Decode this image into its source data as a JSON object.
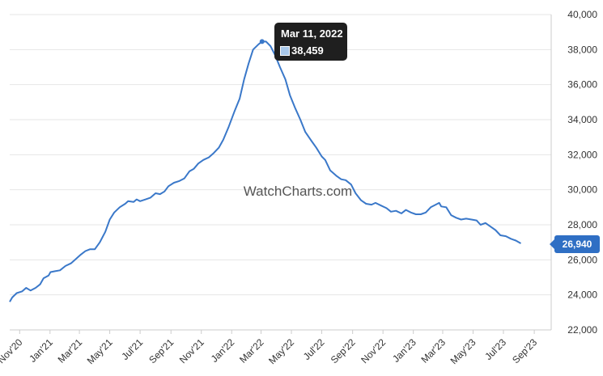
{
  "chart_data": {
    "type": "line",
    "title": "",
    "xlabel": "",
    "ylabel": "",
    "watermark": "WatchCharts.com",
    "ylim": [
      22000,
      40000
    ],
    "yticks": [
      "22,000",
      "24,000",
      "26,000",
      "28,000",
      "30,000",
      "32,000",
      "34,000",
      "36,000",
      "38,000",
      "40,000"
    ],
    "ytick_values": [
      22000,
      24000,
      26000,
      28000,
      30000,
      32000,
      34000,
      36000,
      38000,
      40000
    ],
    "xtick_labels": [
      "Nov'20",
      "Jan'21",
      "Mar'21",
      "May'21",
      "Jul'21",
      "Sep'21",
      "Nov'21",
      "Jan'22",
      "Mar'22",
      "May'22",
      "Jul'22",
      "Sep'22",
      "Nov'22",
      "Jan'23",
      "Mar'23",
      "May'23",
      "Jul'23",
      "Sep'23"
    ],
    "xtick_dates": [
      "2020-11-01",
      "2021-01-01",
      "2021-03-01",
      "2021-05-01",
      "2021-07-01",
      "2021-09-01",
      "2021-11-01",
      "2022-01-01",
      "2022-03-01",
      "2022-05-01",
      "2022-07-01",
      "2022-09-01",
      "2022-11-01",
      "2023-01-01",
      "2023-03-01",
      "2023-05-01",
      "2023-07-01",
      "2023-09-01"
    ],
    "x_range": [
      "2020-10-12",
      "2023-10-05"
    ],
    "grid": true,
    "line_color": "#3a78c9",
    "series": [
      {
        "name": "",
        "points": [
          [
            "2020-10-12",
            23600
          ],
          [
            "2020-10-17",
            23850
          ],
          [
            "2020-10-26",
            24100
          ],
          [
            "2020-11-06",
            24200
          ],
          [
            "2020-11-14",
            24400
          ],
          [
            "2020-11-23",
            24250
          ],
          [
            "2020-12-03",
            24400
          ],
          [
            "2020-12-12",
            24600
          ],
          [
            "2020-12-19",
            24950
          ],
          [
            "2020-12-29",
            25100
          ],
          [
            "2021-01-02",
            25300
          ],
          [
            "2021-01-11",
            25350
          ],
          [
            "2021-01-21",
            25400
          ],
          [
            "2021-02-01",
            25650
          ],
          [
            "2021-02-12",
            25800
          ],
          [
            "2021-02-22",
            26050
          ],
          [
            "2021-03-04",
            26300
          ],
          [
            "2021-03-13",
            26500
          ],
          [
            "2021-03-22",
            26600
          ],
          [
            "2021-04-01",
            26600
          ],
          [
            "2021-04-11",
            27000
          ],
          [
            "2021-04-22",
            27600
          ],
          [
            "2021-05-01",
            28300
          ],
          [
            "2021-05-10",
            28700
          ],
          [
            "2021-05-21",
            29000
          ],
          [
            "2021-06-01",
            29200
          ],
          [
            "2021-06-07",
            29350
          ],
          [
            "2021-06-18",
            29300
          ],
          [
            "2021-06-24",
            29450
          ],
          [
            "2021-07-01",
            29350
          ],
          [
            "2021-07-12",
            29450
          ],
          [
            "2021-07-22",
            29550
          ],
          [
            "2021-08-01",
            29800
          ],
          [
            "2021-08-10",
            29750
          ],
          [
            "2021-08-19",
            29900
          ],
          [
            "2021-08-27",
            30200
          ],
          [
            "2021-09-07",
            30400
          ],
          [
            "2021-09-18",
            30500
          ],
          [
            "2021-09-28",
            30650
          ],
          [
            "2021-10-08",
            31050
          ],
          [
            "2021-10-17",
            31200
          ],
          [
            "2021-10-26",
            31500
          ],
          [
            "2021-11-05",
            31700
          ],
          [
            "2021-11-16",
            31850
          ],
          [
            "2021-11-26",
            32100
          ],
          [
            "2021-12-06",
            32400
          ],
          [
            "2021-12-15",
            32850
          ],
          [
            "2021-12-26",
            33600
          ],
          [
            "2022-01-07",
            34500
          ],
          [
            "2022-01-17",
            35200
          ],
          [
            "2022-01-26",
            36300
          ],
          [
            "2022-02-04",
            37200
          ],
          [
            "2022-02-13",
            38000
          ],
          [
            "2022-02-24",
            38300
          ],
          [
            "2022-03-03",
            38459
          ],
          [
            "2022-03-11",
            38459
          ],
          [
            "2022-03-20",
            38200
          ],
          [
            "2022-03-29",
            37700
          ],
          [
            "2022-04-08",
            37000
          ],
          [
            "2022-04-19",
            36300
          ],
          [
            "2022-04-28",
            35400
          ],
          [
            "2022-05-08",
            34700
          ],
          [
            "2022-05-19",
            34000
          ],
          [
            "2022-05-29",
            33300
          ],
          [
            "2022-06-10",
            32800
          ],
          [
            "2022-06-20",
            32400
          ],
          [
            "2022-07-01",
            31900
          ],
          [
            "2022-07-08",
            31700
          ],
          [
            "2022-07-18",
            31100
          ],
          [
            "2022-07-30",
            30800
          ],
          [
            "2022-08-09",
            30600
          ],
          [
            "2022-08-18",
            30550
          ],
          [
            "2022-08-29",
            30300
          ],
          [
            "2022-09-07",
            29800
          ],
          [
            "2022-09-18",
            29400
          ],
          [
            "2022-09-28",
            29200
          ],
          [
            "2022-10-09",
            29150
          ],
          [
            "2022-10-17",
            29250
          ],
          [
            "2022-10-28",
            29100
          ],
          [
            "2022-11-08",
            28950
          ],
          [
            "2022-11-17",
            28750
          ],
          [
            "2022-11-27",
            28800
          ],
          [
            "2022-12-08",
            28650
          ],
          [
            "2022-12-17",
            28850
          ],
          [
            "2022-12-27",
            28700
          ],
          [
            "2023-01-06",
            28600
          ],
          [
            "2023-01-16",
            28600
          ],
          [
            "2023-01-26",
            28700
          ],
          [
            "2023-02-05",
            29000
          ],
          [
            "2023-02-15",
            29150
          ],
          [
            "2023-02-22",
            29250
          ],
          [
            "2023-02-26",
            29050
          ],
          [
            "2023-03-08",
            29000
          ],
          [
            "2023-03-18",
            28550
          ],
          [
            "2023-03-28",
            28400
          ],
          [
            "2023-04-07",
            28300
          ],
          [
            "2023-04-17",
            28350
          ],
          [
            "2023-04-28",
            28300
          ],
          [
            "2023-05-08",
            28250
          ],
          [
            "2023-05-16",
            28000
          ],
          [
            "2023-05-26",
            28100
          ],
          [
            "2023-06-05",
            27900
          ],
          [
            "2023-06-15",
            27700
          ],
          [
            "2023-06-25",
            27400
          ],
          [
            "2023-07-06",
            27350
          ],
          [
            "2023-07-16",
            27200
          ],
          [
            "2023-07-26",
            27100
          ],
          [
            "2023-08-05",
            26940
          ]
        ]
      }
    ],
    "tooltip": {
      "date": "Mar 11, 2022",
      "value": "38,459",
      "swatch_color": "#a9c8ea"
    },
    "last_value_label": "26,940",
    "badge_color": "#2f6fc4"
  }
}
